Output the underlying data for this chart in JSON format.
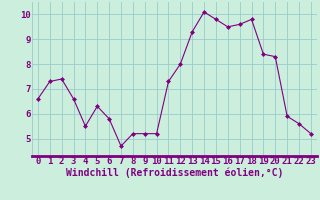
{
  "x": [
    0,
    1,
    2,
    3,
    4,
    5,
    6,
    7,
    8,
    9,
    10,
    11,
    12,
    13,
    14,
    15,
    16,
    17,
    18,
    19,
    20,
    21,
    22,
    23
  ],
  "y": [
    6.6,
    7.3,
    7.4,
    6.6,
    5.5,
    6.3,
    5.8,
    4.7,
    5.2,
    5.2,
    5.2,
    7.3,
    8.0,
    9.3,
    10.1,
    9.8,
    9.5,
    9.6,
    9.8,
    8.4,
    8.3,
    5.9,
    5.6,
    5.2
  ],
  "line_color": "#800080",
  "marker": "D",
  "marker_size": 2,
  "bg_color": "#cceedd",
  "grid_color": "#99cccc",
  "axis_bar_color": "#800080",
  "xlabel": "Windchill (Refroidissement éolien,°C)",
  "xlabel_color": "#800080",
  "xlabel_fontsize": 7,
  "tick_color": "#800080",
  "tick_fontsize": 6.5,
  "ylim": [
    4.3,
    10.5
  ],
  "yticks": [
    5,
    6,
    7,
    8,
    9,
    10
  ],
  "xlim": [
    -0.5,
    23.5
  ]
}
